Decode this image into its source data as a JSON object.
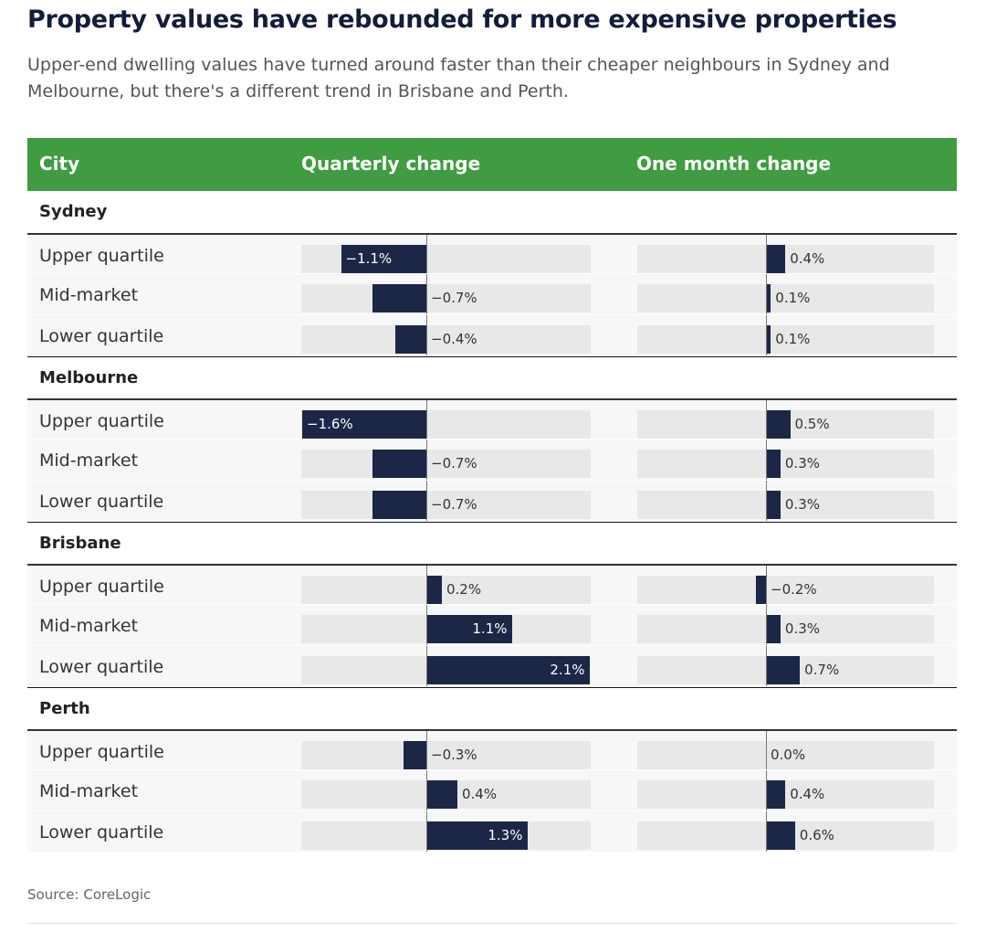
{
  "title": "Property values have rebounded for more expensive properties",
  "subtitle": "Upper-end dwelling values have turned around faster than their cheaper neighbours in Sydney and Melbourne, but there's a different trend in Brisbane and Perth.",
  "source": "Source: CoreLogic",
  "colors": {
    "header_bg": "#3f9c41",
    "bar": "#1c2747",
    "track": "#e8e8e8"
  },
  "chart_data": {
    "type": "bar",
    "columns": [
      "City",
      "Quarterly change",
      "One month change"
    ],
    "quarterly_range": [
      -1.6,
      2.1
    ],
    "monthly_range": [
      -0.2,
      0.7
    ],
    "groups": [
      {
        "city": "Sydney",
        "rows": [
          {
            "label": "Upper quartile",
            "quarterly": -1.1,
            "quarterly_text": "−1.1%",
            "monthly": 0.4,
            "monthly_text": "0.4%"
          },
          {
            "label": "Mid-market",
            "quarterly": -0.7,
            "quarterly_text": "−0.7%",
            "monthly": 0.1,
            "monthly_text": "0.1%"
          },
          {
            "label": "Lower quartile",
            "quarterly": -0.4,
            "quarterly_text": "−0.4%",
            "monthly": 0.1,
            "monthly_text": "0.1%"
          }
        ]
      },
      {
        "city": "Melbourne",
        "rows": [
          {
            "label": "Upper quartile",
            "quarterly": -1.6,
            "quarterly_text": "−1.6%",
            "monthly": 0.5,
            "monthly_text": "0.5%"
          },
          {
            "label": "Mid-market",
            "quarterly": -0.7,
            "quarterly_text": "−0.7%",
            "monthly": 0.3,
            "monthly_text": "0.3%"
          },
          {
            "label": "Lower quartile",
            "quarterly": -0.7,
            "quarterly_text": "−0.7%",
            "monthly": 0.3,
            "monthly_text": "0.3%"
          }
        ]
      },
      {
        "city": "Brisbane",
        "rows": [
          {
            "label": "Upper quartile",
            "quarterly": 0.2,
            "quarterly_text": "0.2%",
            "monthly": -0.2,
            "monthly_text": "−0.2%"
          },
          {
            "label": "Mid-market",
            "quarterly": 1.1,
            "quarterly_text": "1.1%",
            "monthly": 0.3,
            "monthly_text": "0.3%"
          },
          {
            "label": "Lower quartile",
            "quarterly": 2.1,
            "quarterly_text": "2.1%",
            "monthly": 0.7,
            "monthly_text": "0.7%"
          }
        ]
      },
      {
        "city": "Perth",
        "rows": [
          {
            "label": "Upper quartile",
            "quarterly": -0.3,
            "quarterly_text": "−0.3%",
            "monthly": 0.0,
            "monthly_text": "0.0%"
          },
          {
            "label": "Mid-market",
            "quarterly": 0.4,
            "quarterly_text": "0.4%",
            "monthly": 0.4,
            "monthly_text": "0.4%"
          },
          {
            "label": "Lower quartile",
            "quarterly": 1.3,
            "quarterly_text": "1.3%",
            "monthly": 0.6,
            "monthly_text": "0.6%"
          }
        ]
      }
    ]
  }
}
